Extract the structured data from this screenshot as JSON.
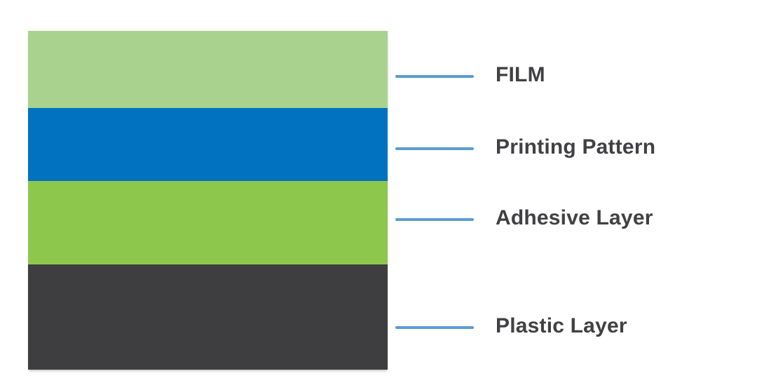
{
  "diagram": {
    "background": "#ffffff",
    "connector_color": "#5b9bd5",
    "label_color": "#414042",
    "layers": [
      {
        "label": "FILM",
        "color": "#a9d28e"
      },
      {
        "label": "Printing Pattern",
        "color": "#0072bf"
      },
      {
        "label": "Adhesive Layer",
        "color": "#8dc84d"
      },
      {
        "label": "Plastic Layer",
        "color": "#3e3e40"
      }
    ]
  }
}
